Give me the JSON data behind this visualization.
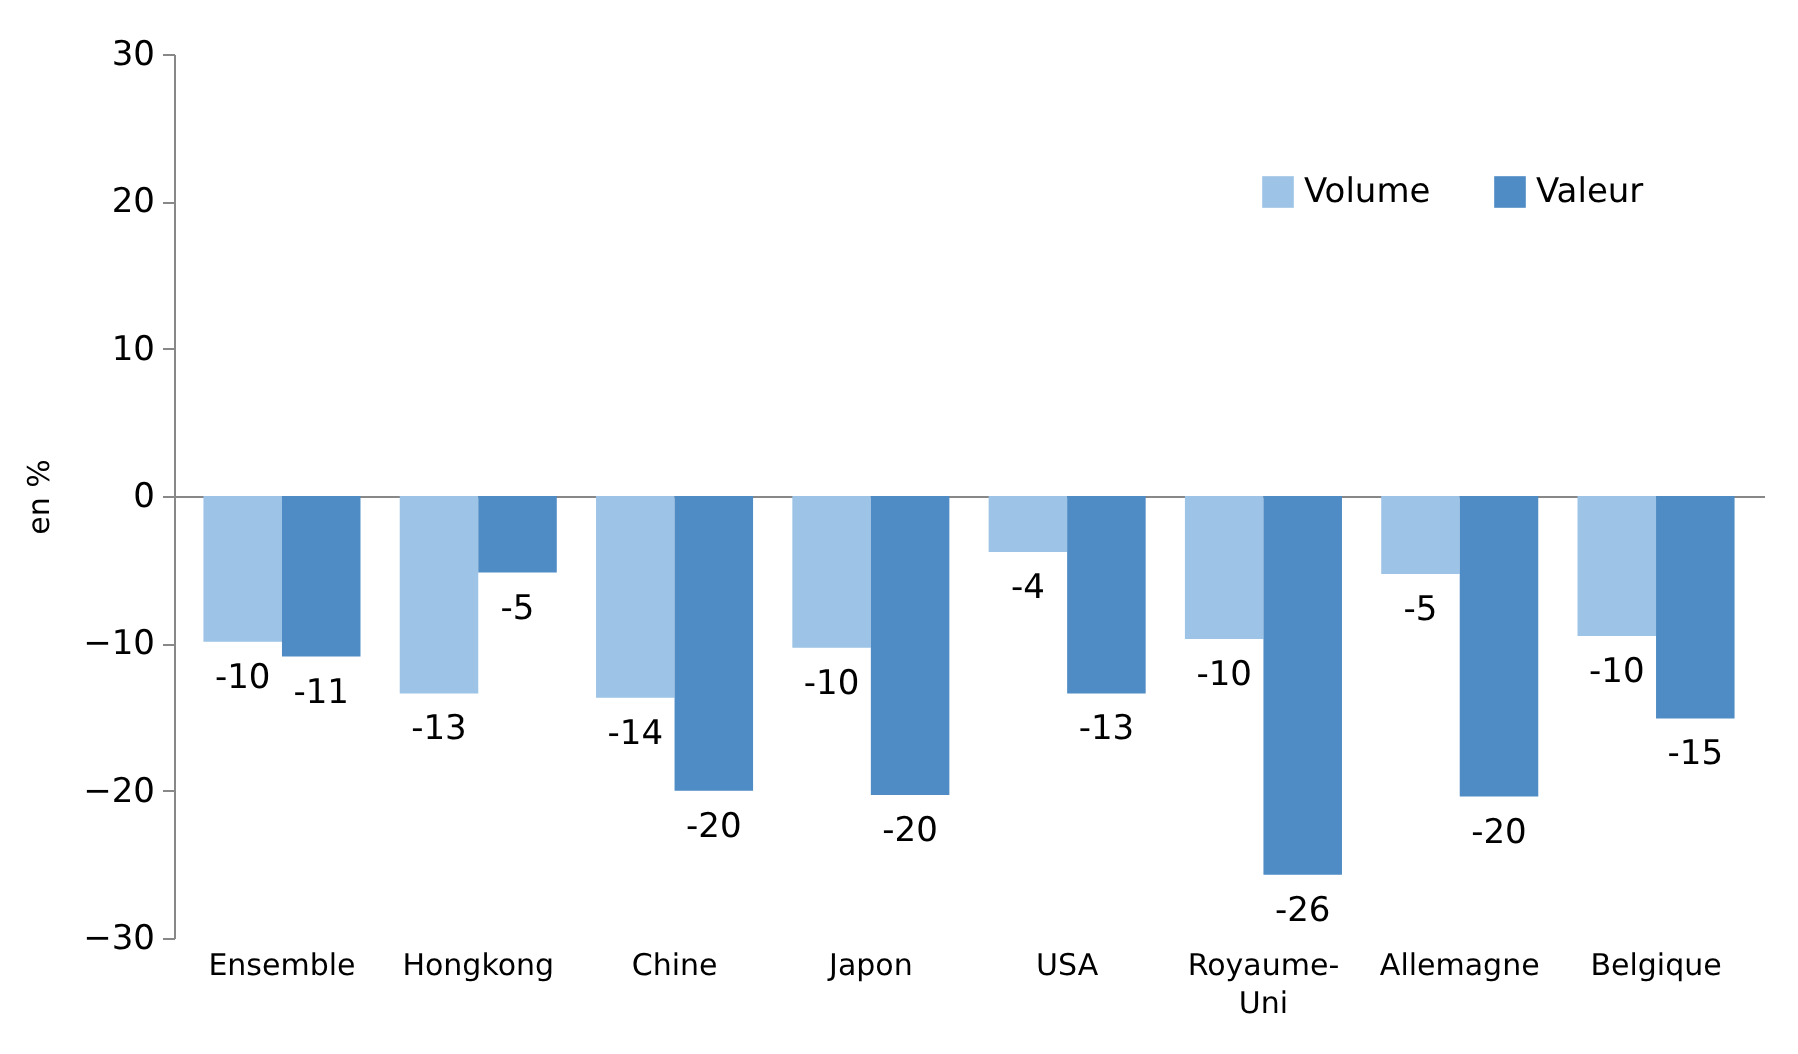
{
  "chart_data": {
    "type": "bar",
    "ylabel": "en %",
    "categories": [
      "Ensemble",
      "Hongkong",
      "Chine",
      "Japon",
      "USA",
      "Royaume-Uni",
      "Allemagne",
      "Belgique"
    ],
    "series": [
      {
        "name": "Volume",
        "color": "#9dc3e6",
        "values": [
          -9.9,
          -13.4,
          -13.7,
          -10.3,
          -3.8,
          -9.7,
          -5.3,
          -9.5
        ],
        "value_labels": [
          "-10",
          "-13",
          "-14",
          "-10",
          "-4",
          "-10",
          "-5",
          "-10"
        ]
      },
      {
        "name": "Valeur",
        "color": "#4f8bc4",
        "values": [
          -10.9,
          -5.2,
          -20.0,
          -20.3,
          -13.4,
          -25.7,
          -20.4,
          -15.1
        ],
        "value_labels": [
          "-11",
          "-5",
          "-20",
          "-20",
          "-13",
          "-26",
          "-20",
          "-15"
        ]
      }
    ],
    "ylim": [
      -30,
      30
    ],
    "yticks": [
      -30,
      -20,
      -10,
      0,
      10,
      20,
      30
    ],
    "legend": "top right"
  }
}
